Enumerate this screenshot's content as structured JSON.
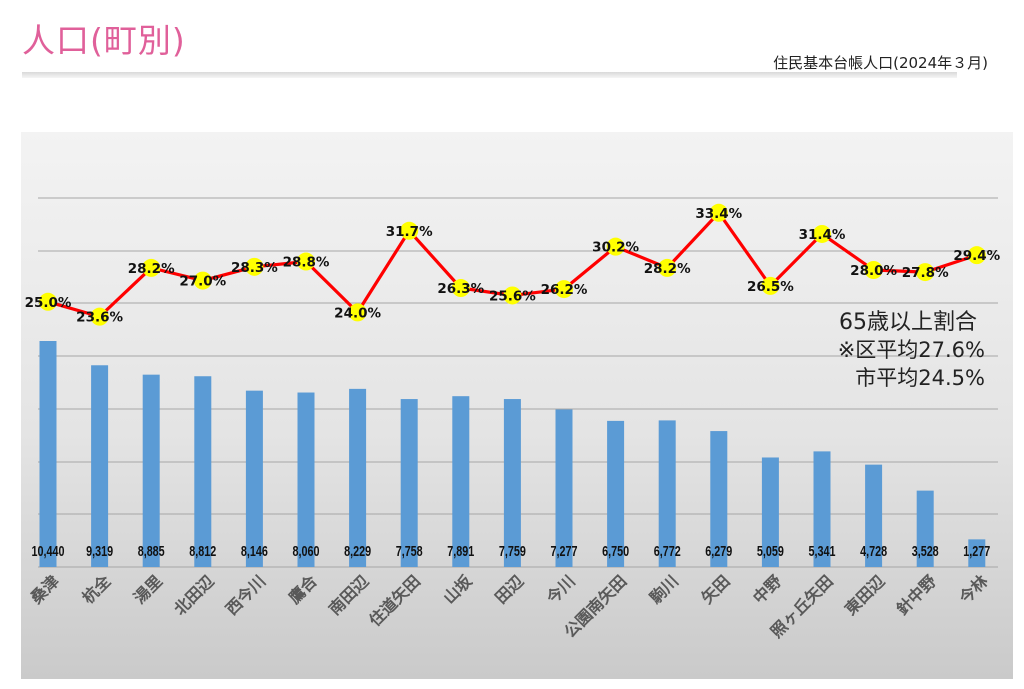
{
  "header": {
    "title": "人口(町別)",
    "source": "住民基本台帳人口(2024年３月)"
  },
  "annotations": {
    "line_label": "65歳以上割合",
    "ward_avg": "※区平均27.6%",
    "city_avg": "市平均24.5%"
  },
  "colors": {
    "title": "#e0609a",
    "bar": "#5b9bd5",
    "line": "#ff0000",
    "marker": "#ffff00",
    "plot_bg_top": "#f2f2f2",
    "plot_bg_bottom": "#c9c9c9"
  },
  "chart_data": {
    "type": "bar",
    "combo": "bar+line",
    "categories": [
      "桑津",
      "杭全",
      "湯里",
      "北田辺",
      "西今川",
      "鷹合",
      "南田辺",
      "住道矢田",
      "山坂",
      "田辺",
      "今川",
      "公園南矢田",
      "駒川",
      "矢田",
      "中野",
      "照ヶ丘矢田",
      "東田辺",
      "針中野",
      "今林"
    ],
    "series": [
      {
        "kind": "bar",
        "values": [
          10440,
          9319,
          8885,
          8812,
          8146,
          8060,
          8229,
          7758,
          7891,
          7759,
          7277,
          6750,
          6772,
          6279,
          5059,
          5341,
          4728,
          3528,
          1277
        ],
        "value_labels": [
          "10,440",
          "9,319",
          "8,885",
          "8,812",
          "8,146",
          "8,060",
          "8,229",
          "7,758",
          "7,891",
          "7,759",
          "7,277",
          "6,750",
          "6,772",
          "6,279",
          "5,059",
          "5,341",
          "4,728",
          "3,528",
          "1,277"
        ]
      },
      {
        "kind": "line",
        "values": [
          25.0,
          23.6,
          28.2,
          27.0,
          28.3,
          28.8,
          24.0,
          31.7,
          26.3,
          25.6,
          26.2,
          30.2,
          28.2,
          33.4,
          26.5,
          31.4,
          28.0,
          27.8,
          29.4
        ],
        "value_labels": [
          "25.0%",
          "23.6%",
          "28.2%",
          "27.0%",
          "28.3%",
          "28.8%",
          "24.0%",
          "31.7%",
          "26.3%",
          "25.6%",
          "26.2%",
          "30.2%",
          "28.2%",
          "33.4%",
          "26.5%",
          "31.4%",
          "28.0%",
          "27.8%",
          "29.4%"
        ]
      }
    ],
    "grid": true
  }
}
